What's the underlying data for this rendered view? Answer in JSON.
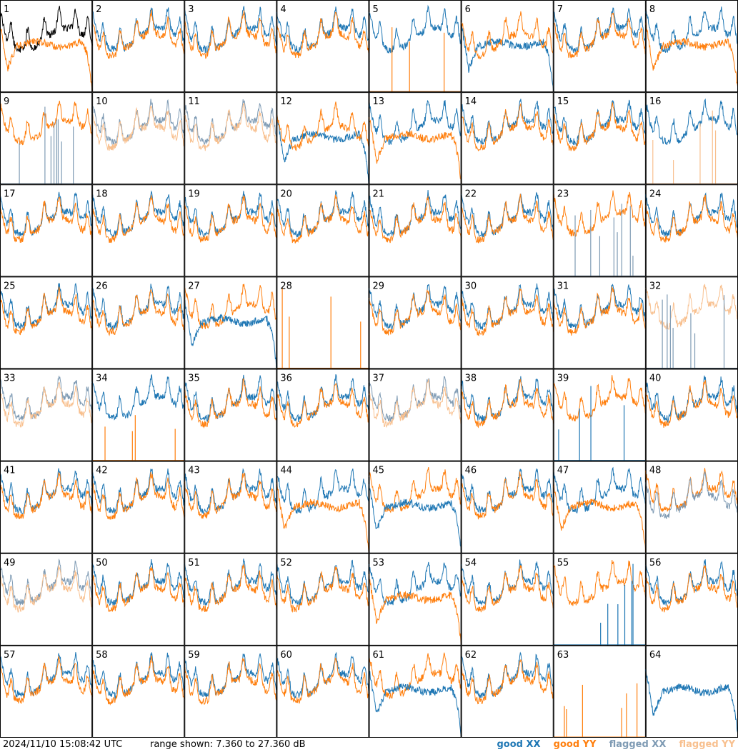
{
  "chart_data": {
    "type": "line",
    "panel_labels": [
      "1",
      "2",
      "3",
      "4",
      "5",
      "6",
      "7",
      "8",
      "9",
      "10",
      "11",
      "12",
      "13",
      "14",
      "15",
      "16",
      "17",
      "18",
      "19",
      "20",
      "21",
      "22",
      "23",
      "24",
      "25",
      "26",
      "27",
      "28",
      "29",
      "30",
      "31",
      "32",
      "33",
      "34",
      "35",
      "36",
      "37",
      "38",
      "39",
      "40",
      "41",
      "42",
      "43",
      "44",
      "45",
      "46",
      "47",
      "48",
      "49",
      "50",
      "51",
      "52",
      "53",
      "54",
      "55",
      "56",
      "57",
      "58",
      "59",
      "60",
      "61",
      "62",
      "63",
      "64"
    ],
    "grid": {
      "rows": 8,
      "cols": 8
    },
    "ylim": [
      7.36,
      27.36
    ],
    "y_unit": "dB",
    "series": [
      {
        "key": "good_xx",
        "name": "good XX",
        "color": "#1f77b4"
      },
      {
        "key": "good_yy",
        "name": "good YY",
        "color": "#ff7f0e"
      },
      {
        "key": "flagged_xx",
        "name": "flagged XX",
        "color": "#7f9bb4"
      },
      {
        "key": "flagged_yy",
        "name": "flagged YY",
        "color": "#f8c08f"
      }
    ],
    "panel_kinds": {
      "1": [
        "good_xx",
        "sag_good_yy"
      ],
      "5": [
        "noisyXX_good_xx",
        "spikes_good_yy"
      ],
      "6": [
        "sag_good_xx",
        "normal_good_yy"
      ],
      "8": [
        "normal_good_xx",
        "sag_good_yy"
      ],
      "9": [
        "normal_good_yy",
        "spikes_flagged_xx"
      ],
      "10": [
        "normal_flagged_xx",
        "normal_flagged_yy"
      ],
      "11": [
        "normal_flagged_xx",
        "normal_flagged_yy"
      ],
      "12": [
        "sag_good_xx",
        "normal_good_yy"
      ],
      "13": [
        "normal_good_xx",
        "sag_good_yy"
      ],
      "16": [
        "normal_good_xx",
        "spikes_flagged_yy"
      ],
      "23": [
        "normal_good_yy",
        "spikes_flagged_xx"
      ],
      "27": [
        "normal_good_yy",
        "sag_good_xx"
      ],
      "28": [
        "spikes_good_yy"
      ],
      "32": [
        "normal_flagged_yy",
        "spikes_flagged_xx"
      ],
      "33": [
        "normal_flagged_xx",
        "normal_flagged_yy"
      ],
      "34": [
        "normal_good_xx",
        "spikes_good_yy"
      ],
      "37": [
        "normal_flagged_xx",
        "normal_flagged_yy"
      ],
      "39": [
        "normal_good_yy",
        "spikes_good_xx"
      ],
      "44": [
        "normal_good_xx",
        "sag_good_yy"
      ],
      "45": [
        "normal_good_yy",
        "sag_good_xx"
      ],
      "47": [
        "normal_good_xx",
        "sag_good_yy"
      ],
      "48": [
        "normal_good_yy",
        "normal_flagged_xx"
      ],
      "49": [
        "normal_flagged_xx",
        "normal_flagged_yy"
      ],
      "53": [
        "normal_good_xx",
        "sag_good_yy"
      ],
      "55": [
        "normal_good_yy",
        "spikes_good_xx"
      ],
      "61": [
        "normal_good_yy",
        "sag_good_xx"
      ],
      "63": [
        "spikes_good_yy"
      ],
      "64": [
        "sag_good_xx"
      ]
    }
  },
  "footer": {
    "timestamp": "2024/11/10 15:08:42 UTC",
    "range_text": "range shown: 7.360 to 27.360 dB",
    "legend": [
      {
        "label": "good XX",
        "color": "#1f77b4"
      },
      {
        "label": "good YY",
        "color": "#ff7f0e"
      },
      {
        "label": "flagged XX",
        "color": "#7f9bb4"
      },
      {
        "label": "flagged YY",
        "color": "#f8c08f"
      }
    ]
  }
}
